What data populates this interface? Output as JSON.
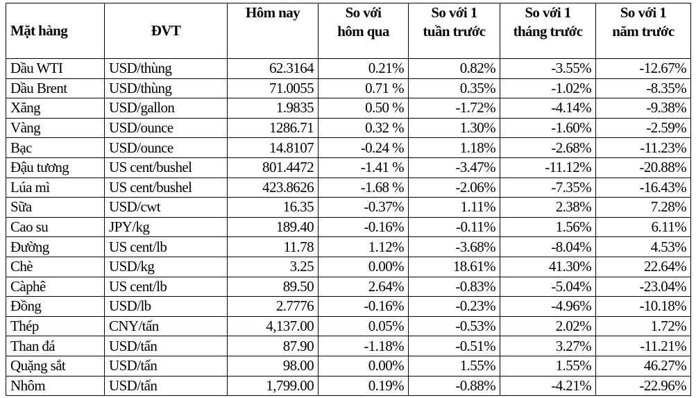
{
  "headers": [
    "Mặt hàng",
    "ĐVT",
    "Hôm nay",
    "So với hôm qua",
    "So với 1 tuần trước",
    "So với 1 tháng trước",
    "So với 1 năm trước"
  ],
  "rows": [
    [
      "Dầu WTI",
      "USD/thùng",
      "62.3164",
      "0.21%",
      "0.82%",
      "-3.55%",
      "-12.67%"
    ],
    [
      "Dầu Brent",
      "USD/thùng",
      "71.0055",
      "0.71 %",
      "0.35%",
      "-1.02%",
      "-8.35%"
    ],
    [
      "Xăng",
      "USD/gallon",
      "1.9835",
      "0.50 %",
      "-1.72%",
      "-4.14%",
      "-9.38%"
    ],
    [
      "Vàng",
      "USD/ounce",
      "1286.71",
      "0.32 %",
      "1.30%",
      "-1.60%",
      "-2.59%"
    ],
    [
      "Bạc",
      "USD/ounce",
      "14.8107",
      "-0.24 %",
      "1.18%",
      "-2.68%",
      "-11.23%"
    ],
    [
      "Đậu tương",
      "US cent/bushel",
      "801.4472",
      "-1.41 %",
      "-3.47%",
      "-11.12%",
      "-20.88%"
    ],
    [
      "Lúa mì",
      "US cent/bushel",
      "423.8626",
      "-1.68 %",
      "-2.06%",
      "-7.35%",
      "-16.43%"
    ],
    [
      "Sữa",
      "USD/cwt",
      "16.35",
      "-0.37%",
      "1.11%",
      "2.38%",
      "7.28%"
    ],
    [
      "Cao su",
      "JPY/kg",
      "189.40",
      "-0.16%",
      "-0.11%",
      "1.56%",
      "6.11%"
    ],
    [
      "Đường",
      "US cent/lb",
      "11.78",
      "1.12%",
      "-3.68%",
      "-8.04%",
      "4.53%"
    ],
    [
      "Chè",
      "USD/kg",
      "3.25",
      "0.00%",
      "18.61%",
      "41.30%",
      "22.64%"
    ],
    [
      "Càphê",
      "US cent/lb",
      "89.50",
      "2.64%",
      "-0.83%",
      "-5.04%",
      "-23.04%"
    ],
    [
      "Đồng",
      "USD/lb",
      "2.7776",
      "-0.16%",
      "-0.23%",
      "-4.96%",
      "-10.18%"
    ],
    [
      "Thép",
      "CNY/tấn",
      "4,137.00",
      "0.05%",
      "-0.53%",
      "2.02%",
      "1.72%"
    ],
    [
      "Than đá",
      "USD/tấn",
      "87.90",
      "-1.18%",
      "-0.51%",
      "3.27%",
      "-11.21%"
    ],
    [
      "Quặng sắt",
      "USD/tấn",
      "98.00",
      "0.00%",
      "1.55%",
      "1.55%",
      "46.27%"
    ],
    [
      "Nhôm",
      "USD/tấn",
      "1,799.00",
      "0.19%",
      "-0.88%",
      "-4.21%",
      "-22.96%"
    ]
  ]
}
